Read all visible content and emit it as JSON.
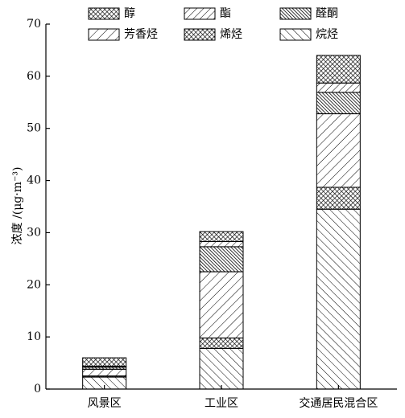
{
  "chart_data": {
    "type": "stacked-bar",
    "y_label": "浓度 /(μg·m⁻³)",
    "categories": [
      "风景区",
      "工业区",
      "交通居民混合区"
    ],
    "series": [
      {
        "name": "烷烃",
        "pattern": "back",
        "values": [
          2.3,
          7.8,
          34.5
        ]
      },
      {
        "name": "烯烃",
        "pattern": "cross-dense",
        "values": [
          0.2,
          2.0,
          4.2
        ]
      },
      {
        "name": "芳香烃",
        "pattern": "forward",
        "values": [
          1.3,
          12.7,
          14.1
        ]
      },
      {
        "name": "醛酮",
        "pattern": "back-dense",
        "values": [
          0.4,
          4.8,
          4.1
        ]
      },
      {
        "name": "酯",
        "pattern": "forward-fine",
        "values": [
          0.2,
          1.0,
          1.8
        ]
      },
      {
        "name": "醇",
        "pattern": "cross-dense",
        "values": [
          1.6,
          1.9,
          5.3
        ]
      }
    ],
    "ylim": [
      0,
      70
    ],
    "yticks": [
      0,
      10,
      20,
      30,
      40,
      50,
      60,
      70
    ]
  }
}
